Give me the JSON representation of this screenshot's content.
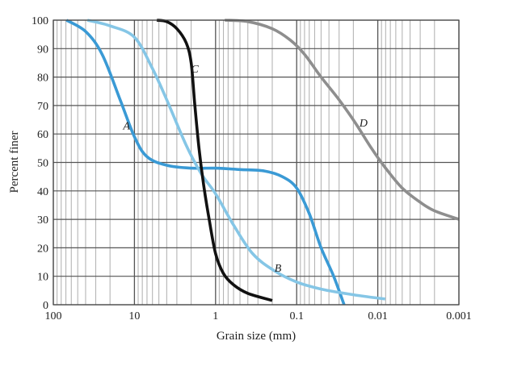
{
  "chart_data": {
    "type": "line",
    "title": "",
    "xlabel": "Grain size (mm)",
    "ylabel": "Percent finer",
    "xscale": "log",
    "xreversed": true,
    "xlim": [
      100,
      0.001
    ],
    "ylim": [
      0,
      100
    ],
    "grid": true,
    "x_ticks": [
      "100",
      "10",
      "1",
      "0.1",
      "0.01",
      "0.001"
    ],
    "y_ticks": [
      "0",
      "10",
      "20",
      "30",
      "40",
      "50",
      "60",
      "70",
      "80",
      "90",
      "100"
    ],
    "series": [
      {
        "name": "A",
        "color": "#3a9ad5",
        "points": [
          [
            69,
            100
          ],
          [
            40,
            96
          ],
          [
            25,
            88
          ],
          [
            15,
            72
          ],
          [
            10,
            59
          ],
          [
            7,
            52
          ],
          [
            4,
            49
          ],
          [
            2,
            48
          ],
          [
            1,
            48
          ],
          [
            0.5,
            47.5
          ],
          [
            0.25,
            47
          ],
          [
            0.15,
            45
          ],
          [
            0.1,
            41
          ],
          [
            0.07,
            32
          ],
          [
            0.05,
            20
          ],
          [
            0.035,
            10
          ],
          [
            0.026,
            0
          ]
        ]
      },
      {
        "name": "B",
        "color": "#85c6e6",
        "points": [
          [
            38,
            100
          ],
          [
            20,
            98
          ],
          [
            10,
            94
          ],
          [
            6,
            83
          ],
          [
            4,
            72
          ],
          [
            2.3,
            56
          ],
          [
            1.5,
            46
          ],
          [
            1,
            39
          ],
          [
            0.6,
            28
          ],
          [
            0.35,
            18
          ],
          [
            0.19,
            12
          ],
          [
            0.1,
            8
          ],
          [
            0.05,
            5.5
          ],
          [
            0.02,
            3.5
          ],
          [
            0.0081,
            2
          ]
        ]
      },
      {
        "name": "C",
        "color": "#111111",
        "points": [
          [
            5.3,
            100
          ],
          [
            4,
            99.5
          ],
          [
            3,
            97
          ],
          [
            2.3,
            92
          ],
          [
            2.0,
            85
          ],
          [
            1.8,
            70
          ],
          [
            1.6,
            55
          ],
          [
            1.4,
            42
          ],
          [
            1.2,
            30
          ],
          [
            1.0,
            18
          ],
          [
            0.8,
            11
          ],
          [
            0.6,
            7
          ],
          [
            0.4,
            4
          ],
          [
            0.2,
            1.5
          ]
        ]
      },
      {
        "name": "D",
        "color": "#8e8e8e",
        "points": [
          [
            0.77,
            100
          ],
          [
            0.4,
            99.5
          ],
          [
            0.2,
            97
          ],
          [
            0.12,
            93
          ],
          [
            0.08,
            88
          ],
          [
            0.05,
            80
          ],
          [
            0.03,
            72
          ],
          [
            0.019,
            64
          ],
          [
            0.012,
            55
          ],
          [
            0.008,
            48
          ],
          [
            0.005,
            41
          ],
          [
            0.003,
            36
          ],
          [
            0.002,
            33
          ],
          [
            0.001,
            30
          ]
        ]
      }
    ],
    "annotations": [
      {
        "text": "A",
        "x": 12.5,
        "y": 63
      },
      {
        "text": "B",
        "x": 0.17,
        "y": 13
      },
      {
        "text": "C",
        "x": 1.8,
        "y": 83
      },
      {
        "text": "D",
        "x": 0.015,
        "y": 64
      }
    ]
  },
  "labels": {
    "xlabel": "Grain size (mm)",
    "ylabel": "Percent finer",
    "curve_a": "A",
    "curve_b": "B",
    "curve_c": "C",
    "curve_d": "D"
  }
}
